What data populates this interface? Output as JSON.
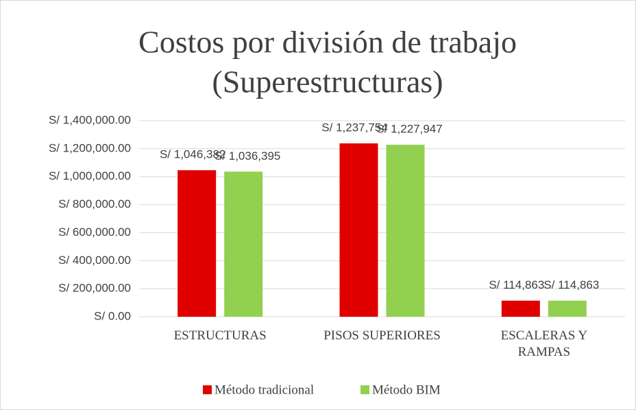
{
  "chart_data": {
    "type": "bar",
    "title": [
      "Costos por división de trabajo",
      "(Superestructuras)"
    ],
    "categories": [
      "ESTRUCTURAS",
      "PISOS SUPERIORES",
      "ESCALERAS Y RAMPAS"
    ],
    "series": [
      {
        "name": "Método tradicional",
        "color": "#e00000",
        "values": [
          1046382,
          1237754,
          114863
        ],
        "value_labels": [
          "S/ 1,046,382",
          "S/ 1,237,754",
          "S/ 114,863"
        ]
      },
      {
        "name": "Método BIM",
        "color": "#92d050",
        "values": [
          1036395,
          1227947,
          114863
        ],
        "value_labels": [
          "S/ 1,036,395",
          "S/ 1,227,947",
          "S/ 114,863"
        ]
      }
    ],
    "ylim": [
      0,
      1400000
    ],
    "yticks": [
      {
        "value": 0,
        "label": "S/ 0.00"
      },
      {
        "value": 200000,
        "label": "S/ 200,000.00"
      },
      {
        "value": 400000,
        "label": "S/ 400,000.00"
      },
      {
        "value": 600000,
        "label": "S/ 600,000.00"
      },
      {
        "value": 800000,
        "label": "S/ 800,000.00"
      },
      {
        "value": 1000000,
        "label": "S/ 1,000,000.00"
      },
      {
        "value": 1200000,
        "label": "S/ 1,200,000.00"
      },
      {
        "value": 1400000,
        "label": "S/ 1,400,000.00"
      }
    ],
    "grid": true,
    "legend": "bottom"
  }
}
